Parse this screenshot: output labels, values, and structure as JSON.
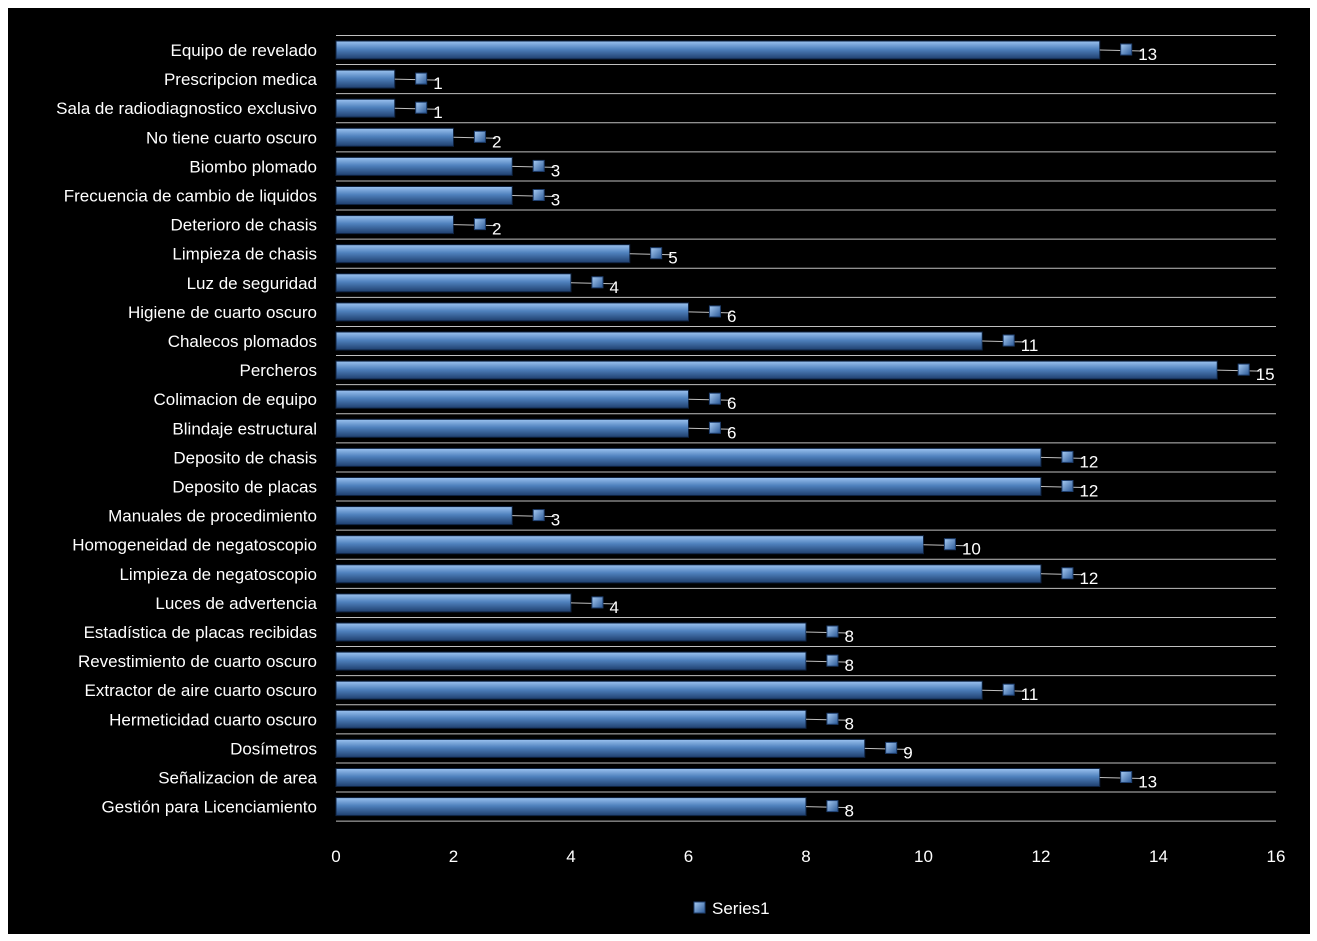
{
  "chart_data": {
    "type": "bar",
    "orientation": "horizontal",
    "categories": [
      "Equipo de revelado",
      "Prescripcion medica",
      "Sala de radiodiagnostico exclusivo",
      "No tiene cuarto oscuro",
      "Biombo plomado",
      "Frecuencia de cambio de liquidos",
      "Deterioro de chasis",
      "Limpieza de chasis",
      "Luz de seguridad",
      "Higiene de cuarto oscuro",
      "Chalecos plomados",
      "Percheros",
      "Colimacion de equipo",
      "Blindaje estructural",
      "Deposito de chasis",
      "Deposito de placas",
      "Manuales de procedimiento",
      "Homogeneidad de negatoscopio",
      "Limpieza de negatoscopio",
      "Luces de advertencia",
      "Estadística de placas recibidas",
      "Revestimiento de cuarto oscuro",
      "Extractor de aire cuarto oscuro",
      "Hermeticidad cuarto oscuro",
      "Dosímetros",
      "Señalizacion de area",
      "Gestión para Licenciamiento"
    ],
    "series": [
      {
        "name": "Series1",
        "values": [
          13,
          1,
          1,
          2,
          3,
          3,
          2,
          5,
          4,
          6,
          11,
          15,
          6,
          6,
          12,
          12,
          3,
          10,
          12,
          4,
          8,
          8,
          11,
          8,
          9,
          13,
          8
        ]
      }
    ],
    "x_ticks": [
      "0",
      "2",
      "4",
      "6",
      "8",
      "10",
      "12",
      "14",
      "16"
    ],
    "xlim": [
      0,
      16
    ],
    "grid": true,
    "legend_position": "bottom",
    "colors": {
      "background": "#000000",
      "bar_light": "#9cc3f0",
      "bar_mid": "#4f81bd",
      "bar_dark": "#1f3f6e",
      "text": "#ffffff",
      "grid": "#bfbfbf"
    }
  }
}
